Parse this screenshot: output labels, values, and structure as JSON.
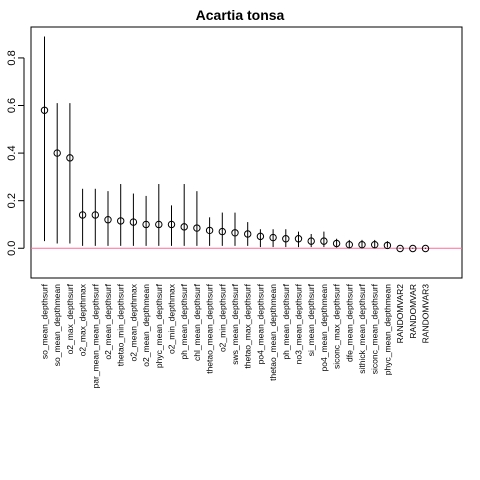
{
  "chart_data": {
    "type": "scatter",
    "title": "Acartia tonsa",
    "xlabel": "",
    "ylabel": "",
    "ylim": [
      -0.125,
      0.93
    ],
    "yticks": [
      0.0,
      0.2,
      0.4,
      0.6,
      0.8
    ],
    "ytick_labels": [
      "0.0",
      "0.2",
      "0.4",
      "0.6",
      "0.8"
    ],
    "reference_line": 0,
    "reference_line_color": "#ff6b9b",
    "categories": [
      "so_mean_depthsurf",
      "so_mean_depthmean",
      "o2_max_depthsurf",
      "o2_max_depthmax",
      "par_mean_mean_depthsurf",
      "o2_mean_depthsurf",
      "thetao_min_depthsurf",
      "o2_mean_depthmax",
      "o2_mean_depthmean",
      "phyc_mean_depthsurf",
      "o2_min_depthmax",
      "ph_mean_depthsurf",
      "chl_mean_depthsurf",
      "thetao_mean_depthsurf",
      "o2_min_depthsurf",
      "sws_mean_depthsurf",
      "thetao_max_depthsurf",
      "po4_mean_depthsurf",
      "thetao_mean_depthmean",
      "ph_mean_depthsurf",
      "no3_mean_depthsurf",
      "si_mean_depthsurf",
      "po4_mean_depthmean",
      "siconc_max_depthsurf",
      "dfe_mean_depthsurf",
      "sithick_mean_depthsurf",
      "siconc_mean_depthsurf",
      "phyc_mean_depthmean",
      "RANDOMVAR2",
      "RANDOMVAR",
      "RANDOMVAR3"
    ],
    "series": [
      {
        "values": [
          0.58,
          0.4,
          0.38,
          0.14,
          0.14,
          0.12,
          0.115,
          0.11,
          0.1,
          0.1,
          0.1,
          0.09,
          0.085,
          0.075,
          0.07,
          0.065,
          0.06,
          0.05,
          0.045,
          0.04,
          0.04,
          0.03,
          0.03,
          0.02,
          0.015,
          0.015,
          0.015,
          0.012,
          -0.001,
          -0.001,
          -0.001
        ],
        "lower": [
          0.03,
          0.02,
          0.02,
          0.01,
          0.01,
          0.01,
          0.01,
          0.01,
          0.01,
          0.01,
          0.01,
          0.01,
          0.01,
          0.01,
          0.01,
          0.01,
          0.01,
          0.005,
          0.005,
          0.005,
          0.005,
          0.005,
          0.005,
          0.003,
          0.003,
          0.003,
          0.003,
          0.003,
          -0.002,
          -0.002,
          -0.002
        ],
        "upper": [
          0.89,
          0.61,
          0.61,
          0.25,
          0.25,
          0.24,
          0.27,
          0.23,
          0.22,
          0.27,
          0.18,
          0.27,
          0.24,
          0.13,
          0.15,
          0.15,
          0.11,
          0.08,
          0.08,
          0.08,
          0.07,
          0.06,
          0.07,
          0.04,
          0.035,
          0.035,
          0.035,
          0.03,
          0.002,
          0.002,
          0.002
        ]
      }
    ],
    "grid": false,
    "legend": "none"
  }
}
